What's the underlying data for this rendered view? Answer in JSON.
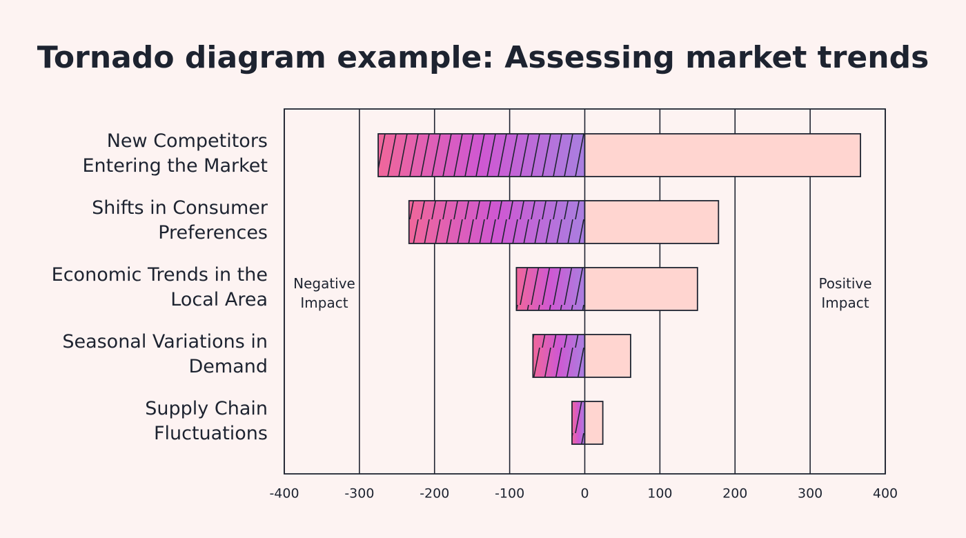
{
  "chart_data": {
    "type": "tornado",
    "title": "Tornado diagram example: Assessing market trends",
    "categories": [
      "New Competitors\nEntering the Market",
      "Shifts in Consumer\nPreferences",
      "Economic Trends in the\nLocal Area",
      "Seasonal Variations in\nDemand",
      "Supply Chain\nFluctuations"
    ],
    "series": [
      {
        "color": [
          "#f0679a",
          "#cf58d2",
          "#a97fe0"
        ],
        "hatch": true,
        "values": [
          -275,
          -234,
          -91,
          -69,
          -17
        ]
      },
      {
        "color": "#ffd5d0",
        "values": [
          367,
          178,
          150,
          61,
          24
        ]
      }
    ],
    "annotations": [
      "Negative\nImpact",
      "Positive\nImpact"
    ],
    "xlim": [
      -400,
      400
    ],
    "xticks": [
      -400,
      -300,
      -200,
      -100,
      0,
      100,
      200,
      300,
      400
    ],
    "grid": true
  }
}
